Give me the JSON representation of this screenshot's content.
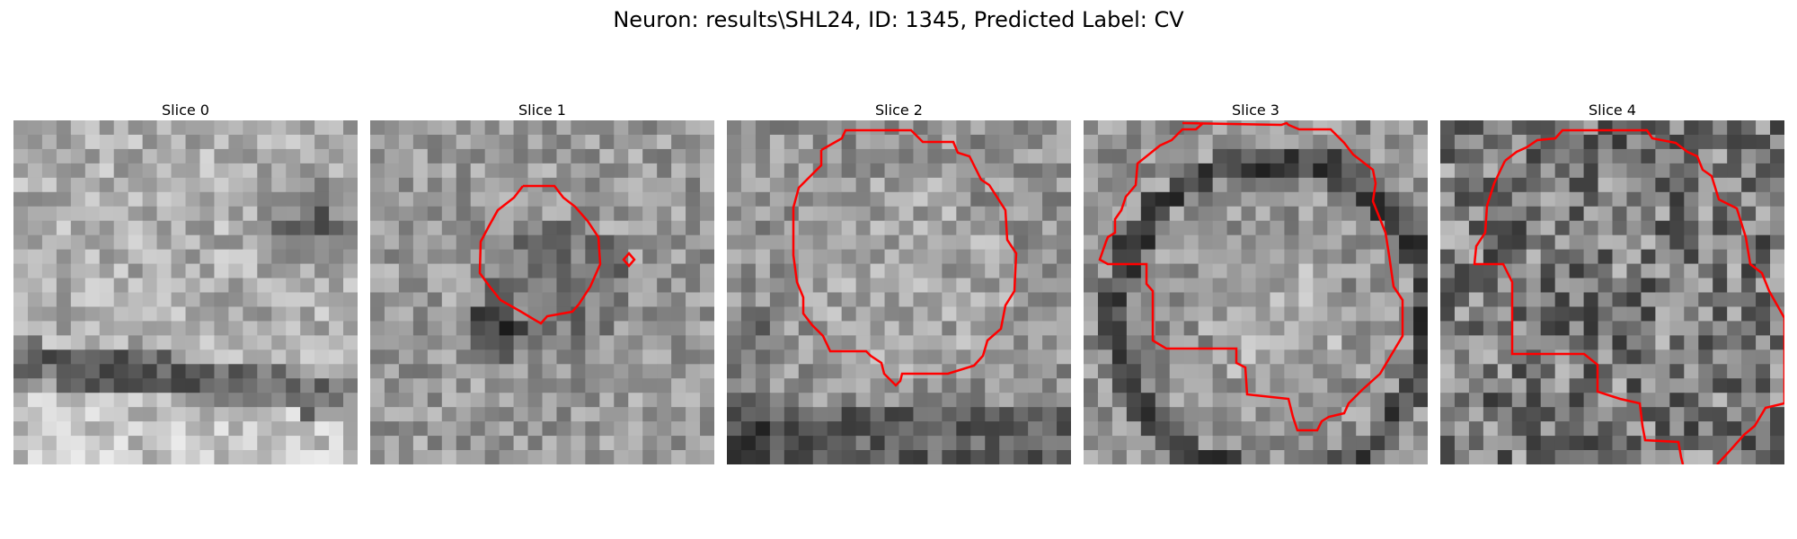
{
  "figure": {
    "title": "Neuron: results\\SHL24, ID: 1345, Predicted Label: CV"
  },
  "colors": {
    "contour": "#ff0000",
    "background": "#ffffff"
  },
  "panels": [
    {
      "title": "Slice 0",
      "has_contour": false
    },
    {
      "title": "Slice 1",
      "has_contour": true
    },
    {
      "title": "Slice 2",
      "has_contour": true
    },
    {
      "title": "Slice 3",
      "has_contour": true
    },
    {
      "title": "Slice 4",
      "has_contour": true
    }
  ]
}
